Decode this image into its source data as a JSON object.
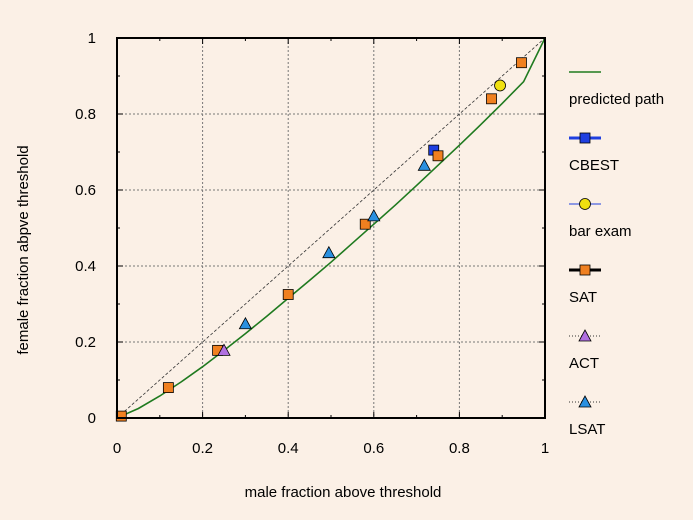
{
  "chart_data": {
    "type": "scatter",
    "xlabel": "male fraction above threshold",
    "ylabel": "female fraction abpve threshold",
    "xlim": [
      0,
      1
    ],
    "ylim": [
      0,
      1
    ],
    "xticks": [
      "0",
      "0.2",
      "0.4",
      "0.6",
      "0.8",
      "1"
    ],
    "yticks": [
      "0",
      "0.2",
      "0.4",
      "0.6",
      "0.8",
      "1"
    ],
    "grid": true,
    "legend_position": "right",
    "series": [
      {
        "name": "predicted path",
        "kind": "line",
        "color": "#1f7a1f",
        "points": [
          [
            0,
            0
          ],
          [
            0.05,
            0.025
          ],
          [
            0.1,
            0.058
          ],
          [
            0.15,
            0.095
          ],
          [
            0.2,
            0.135
          ],
          [
            0.25,
            0.178
          ],
          [
            0.3,
            0.222
          ],
          [
            0.35,
            0.268
          ],
          [
            0.4,
            0.315
          ],
          [
            0.45,
            0.362
          ],
          [
            0.5,
            0.41
          ],
          [
            0.55,
            0.46
          ],
          [
            0.6,
            0.51
          ],
          [
            0.65,
            0.56
          ],
          [
            0.7,
            0.612
          ],
          [
            0.75,
            0.665
          ],
          [
            0.8,
            0.718
          ],
          [
            0.85,
            0.772
          ],
          [
            0.9,
            0.828
          ],
          [
            0.95,
            0.885
          ],
          [
            1,
            1
          ]
        ]
      },
      {
        "name": "CBEST",
        "kind": "square",
        "color": "#1f3fe0",
        "points": [
          [
            0.74,
            0.705
          ]
        ]
      },
      {
        "name": "bar exam",
        "kind": "circle",
        "color": "#f0e010",
        "points": [
          [
            0.895,
            0.875
          ]
        ]
      },
      {
        "name": "SAT",
        "kind": "square",
        "color": "#f08020",
        "points": [
          [
            0.01,
            0.005
          ],
          [
            0.12,
            0.08
          ],
          [
            0.235,
            0.178
          ],
          [
            0.4,
            0.325
          ],
          [
            0.58,
            0.51
          ],
          [
            0.75,
            0.69
          ],
          [
            0.875,
            0.84
          ],
          [
            0.945,
            0.935
          ]
        ]
      },
      {
        "name": "ACT",
        "kind": "triangle",
        "color": "#b070e0",
        "points": [
          [
            0.25,
            0.178
          ]
        ]
      },
      {
        "name": "LSAT",
        "kind": "triangle",
        "color": "#2a90e0",
        "points": [
          [
            0.3,
            0.248
          ],
          [
            0.495,
            0.435
          ],
          [
            0.6,
            0.532
          ],
          [
            0.718,
            0.665
          ]
        ]
      }
    ],
    "reference_line": {
      "style": "dashed",
      "from": [
        0,
        0
      ],
      "to": [
        1,
        1
      ],
      "color": "#333333"
    }
  }
}
